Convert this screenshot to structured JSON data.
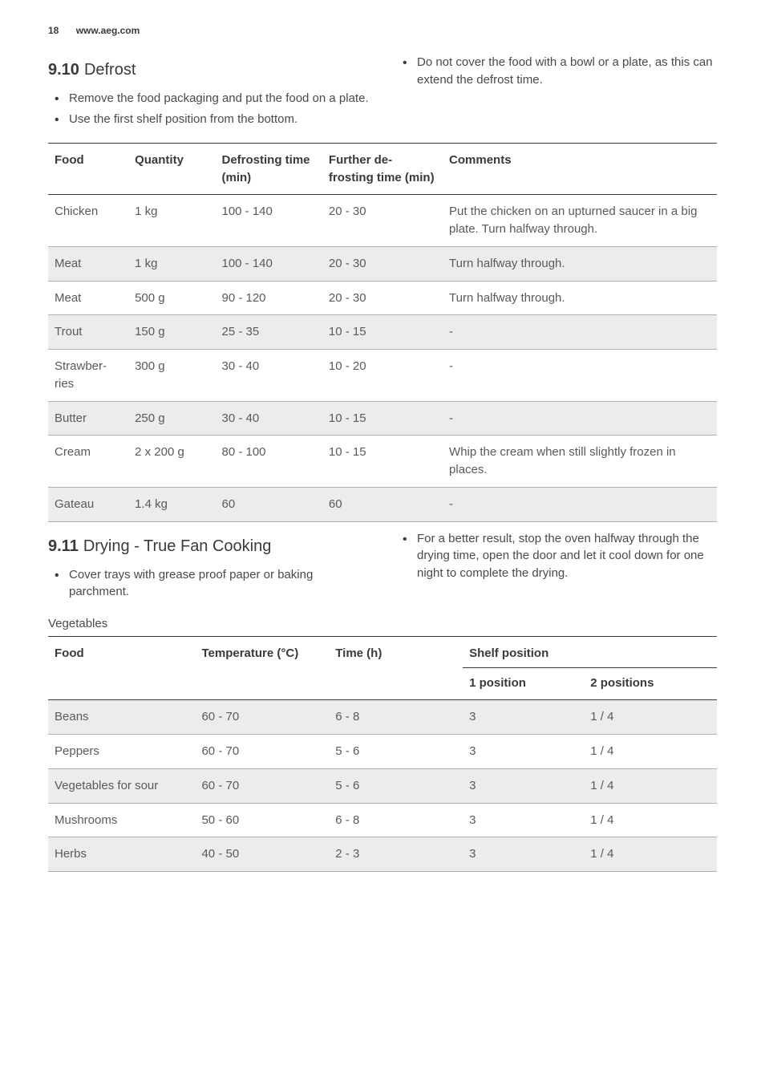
{
  "header": {
    "page_num": "18",
    "url": "www.aeg.com"
  },
  "section_defrost": {
    "num": "9.10",
    "title": "Defrost",
    "left_bullets": [
      "Remove the food packaging and put the food on a plate.",
      "Use the first shelf position from the bottom."
    ],
    "right_bullets": [
      "Do not cover the food with a bowl or a plate, as this can extend the defrost time."
    ],
    "table": {
      "columns": [
        "Food",
        "Quantity",
        "Defrosting time (min)",
        "Further de-frosting time (min)",
        "Comments"
      ],
      "rows": [
        {
          "cells": [
            "Chicken",
            "1 kg",
            "100 - 140",
            "20 - 30",
            "Put the chicken on an upturned saucer in a big plate. Turn halfway through."
          ],
          "striped": false
        },
        {
          "cells": [
            "Meat",
            "1 kg",
            "100 - 140",
            "20 - 30",
            "Turn halfway through."
          ],
          "striped": true
        },
        {
          "cells": [
            "Meat",
            "500 g",
            "90 - 120",
            "20 - 30",
            "Turn halfway through."
          ],
          "striped": false
        },
        {
          "cells": [
            "Trout",
            "150 g",
            "25 - 35",
            "10 - 15",
            "-"
          ],
          "striped": true
        },
        {
          "cells": [
            "Strawber-ries",
            "300 g",
            "30 - 40",
            "10 - 20",
            "-"
          ],
          "striped": false
        },
        {
          "cells": [
            "Butter",
            "250 g",
            "30 - 40",
            "10 - 15",
            "-"
          ],
          "striped": true
        },
        {
          "cells": [
            "Cream",
            "2 x 200 g",
            "80 - 100",
            "10 - 15",
            "Whip the cream when still slightly frozen in places."
          ],
          "striped": false
        },
        {
          "cells": [
            "Gateau",
            "1.4 kg",
            "60",
            "60",
            "-"
          ],
          "striped": true
        }
      ]
    }
  },
  "section_drying": {
    "num": "9.11",
    "title": "Drying - True Fan Cooking",
    "left_bullets": [
      "Cover trays with grease proof paper or baking parchment."
    ],
    "right_bullets": [
      "For a better result, stop the oven halfway through the drying time, open the door and let it cool down for one night to complete the drying."
    ],
    "subhead": "Vegetables",
    "table": {
      "columns": [
        "Food",
        "Temperature (°C)",
        "Time (h)"
      ],
      "shelf_header": "Shelf position",
      "shelf_sub": [
        "1 position",
        "2 positions"
      ],
      "rows": [
        {
          "cells": [
            "Beans",
            "60 - 70",
            "6 - 8",
            "3",
            "1 / 4"
          ],
          "striped": true
        },
        {
          "cells": [
            "Peppers",
            "60 - 70",
            "5 - 6",
            "3",
            "1 / 4"
          ],
          "striped": false
        },
        {
          "cells": [
            "Vegetables for sour",
            "60 - 70",
            "5 - 6",
            "3",
            "1 / 4"
          ],
          "striped": true
        },
        {
          "cells": [
            "Mushrooms",
            "50 - 60",
            "6 - 8",
            "3",
            "1 / 4"
          ],
          "striped": false
        },
        {
          "cells": [
            "Herbs",
            "40 - 50",
            "2 - 3",
            "3",
            "1 / 4"
          ],
          "striped": true
        }
      ]
    }
  }
}
